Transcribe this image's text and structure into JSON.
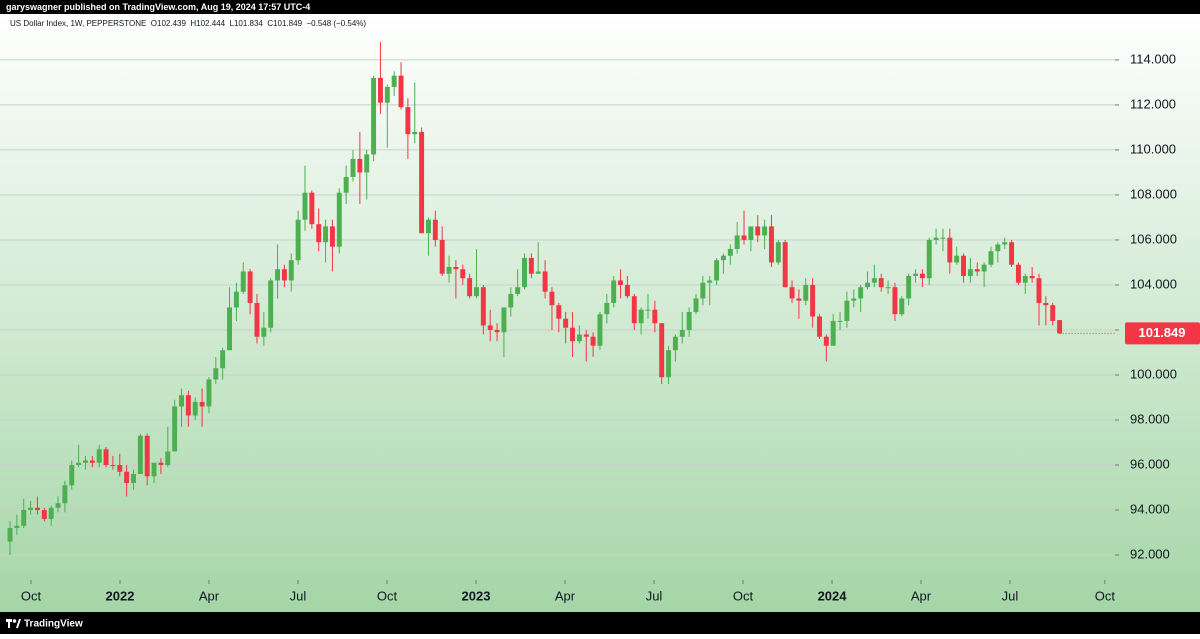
{
  "chart_data": {
    "type": "candlestick",
    "title": "garyswagner published on TradingView.com, Aug 19, 2024 17:57 UTC-4",
    "subtitle": "US Dollar Index, 1W, PEPPERSTONE  O102.439  H102.444  L101.834  C101.849  −0.548 (−0.54%)",
    "brand": "TradingView",
    "last_price_label": "101.849",
    "up_color": "#4caf50",
    "down_color": "#f23645",
    "grid": true,
    "ylim": [
      90.89,
      116.04
    ],
    "yticks": [
      {
        "value": 92,
        "label": "92.000"
      },
      {
        "value": 94,
        "label": "94.000"
      },
      {
        "value": 96,
        "label": "96.000"
      },
      {
        "value": 98,
        "label": "98.000"
      },
      {
        "value": 100,
        "label": "100.000"
      },
      {
        "value": 102,
        "label": "102.000"
      },
      {
        "value": 104,
        "label": "104.000"
      },
      {
        "value": 106,
        "label": "106.000"
      },
      {
        "value": 108,
        "label": "108.000"
      },
      {
        "value": 110,
        "label": "110.000"
      },
      {
        "value": 112,
        "label": "112.000"
      },
      {
        "value": 114,
        "label": "114.000"
      }
    ],
    "xlim": [
      -1.46,
      161.08
    ],
    "xticks": [
      {
        "value": 3.06,
        "label": "Oct"
      },
      {
        "value": 16.03,
        "label": "2022"
      },
      {
        "value": 29.0,
        "label": "Apr"
      },
      {
        "value": 41.98,
        "label": "Jul"
      },
      {
        "value": 54.96,
        "label": "Oct"
      },
      {
        "value": 67.93,
        "label": "2023"
      },
      {
        "value": 80.9,
        "label": "Apr"
      },
      {
        "value": 93.88,
        "label": "Jul"
      },
      {
        "value": 106.85,
        "label": "Oct"
      },
      {
        "value": 119.83,
        "label": "2024"
      },
      {
        "value": 132.8,
        "label": "Apr"
      },
      {
        "value": 145.77,
        "label": "Jul"
      },
      {
        "value": 159.6,
        "label": "Oct"
      }
    ],
    "open": [
      92.6,
      93.2,
      93.3,
      94.0,
      94.1,
      94.0,
      93.6,
      94.1,
      94.3,
      95.1,
      96.0,
      96.1,
      96.2,
      96.1,
      96.7,
      96.0,
      96.0,
      95.7,
      95.2,
      95.6,
      97.3,
      95.5,
      96.1,
      96.0,
      96.6,
      98.6,
      99.1,
      98.2,
      98.8,
      98.6,
      99.8,
      100.3,
      101.1,
      103.0,
      103.7,
      104.6,
      103.2,
      101.7,
      102.1,
      104.2,
      104.7,
      104.2,
      105.1,
      106.9,
      108.1,
      106.7,
      105.9,
      106.6,
      105.7,
      108.1,
      108.8,
      109.6,
      109.0,
      109.8,
      113.2,
      112.1,
      112.8,
      113.3,
      111.9,
      110.7,
      110.8,
      106.3,
      106.9,
      106.0,
      104.5,
      104.8,
      104.7,
      104.3,
      103.5,
      103.9,
      102.2,
      102.0,
      101.9,
      103.0,
      103.6,
      103.9,
      105.2,
      104.5,
      104.6,
      103.7,
      103.1,
      102.5,
      102.1,
      101.5,
      101.8,
      101.7,
      101.3,
      102.7,
      103.2,
      104.2,
      104.0,
      103.5,
      102.3,
      102.9,
      102.9,
      102.3,
      99.9,
      101.1,
      101.7,
      102.0,
      102.8,
      103.4,
      104.1,
      104.2,
      105.1,
      105.3,
      105.6,
      106.2,
      106.0,
      106.6,
      106.2,
      106.6,
      105.0,
      105.9,
      103.9,
      103.4,
      103.3,
      104.0,
      102.6,
      101.7,
      101.3,
      102.4,
      102.4,
      103.3,
      103.4,
      103.9,
      104.1,
      104.3,
      103.9,
      103.9,
      102.7,
      103.4,
      104.4,
      104.5,
      104.3,
      106.0,
      106.1,
      106.1,
      105.0,
      105.3,
      104.4,
      104.7,
      104.6,
      104.9,
      105.5,
      105.8,
      105.9,
      104.9,
      104.1,
      104.4,
      104.3,
      103.2,
      103.1,
      102.439
    ],
    "high": [
      93.5,
      93.8,
      94.5,
      94.4,
      94.6,
      94.1,
      94.2,
      94.6,
      95.3,
      96.2,
      96.9,
      96.4,
      96.4,
      96.9,
      96.8,
      96.4,
      96.5,
      96.0,
      95.8,
      97.4,
      97.4,
      96.1,
      96.3,
      97.7,
      98.9,
      99.4,
      99.3,
      99.0,
      99.4,
      99.9,
      100.8,
      101.2,
      103.9,
      104.1,
      105.0,
      104.7,
      103.6,
      102.8,
      104.3,
      105.8,
      104.9,
      105.4,
      107.3,
      109.3,
      108.2,
      107.4,
      106.9,
      106.9,
      108.3,
      109.3,
      110.0,
      110.8,
      110.0,
      113.3,
      114.8,
      112.9,
      113.5,
      113.9,
      112.3,
      113.0,
      111.0,
      107.0,
      107.3,
      106.6,
      105.3,
      105.1,
      104.9,
      104.5,
      105.6,
      104.0,
      102.9,
      102.3,
      103.0,
      103.9,
      104.7,
      105.4,
      105.4,
      105.9,
      105.1,
      103.9,
      103.2,
      102.8,
      102.8,
      102.2,
      102.0,
      101.9,
      102.8,
      103.6,
      104.4,
      104.7,
      104.4,
      103.6,
      103.0,
      103.6,
      103.3,
      102.3,
      101.3,
      101.8,
      102.8,
      103.0,
      103.6,
      104.4,
      104.4,
      105.2,
      105.4,
      105.8,
      106.8,
      107.3,
      106.6,
      107.1,
      106.9,
      107.1,
      106.0,
      106.0,
      104.2,
      103.8,
      104.3,
      104.3,
      102.7,
      101.8,
      102.7,
      102.8,
      103.7,
      103.8,
      104.0,
      104.6,
      104.9,
      104.5,
      104.2,
      104.1,
      103.5,
      104.5,
      104.7,
      104.7,
      106.1,
      106.5,
      106.5,
      106.5,
      105.7,
      105.4,
      105.2,
      105.0,
      105.0,
      105.7,
      105.9,
      106.1,
      106.0,
      105.0,
      104.5,
      104.8,
      104.5,
      103.5,
      103.2,
      102.444
    ],
    "low": [
      92.0,
      92.9,
      93.2,
      93.8,
      93.8,
      93.5,
      93.3,
      93.9,
      93.9,
      94.9,
      95.9,
      95.8,
      95.9,
      95.9,
      95.9,
      95.8,
      95.5,
      94.6,
      94.9,
      95.6,
      95.1,
      95.2,
      95.6,
      95.9,
      96.6,
      97.7,
      97.7,
      98.0,
      97.7,
      98.3,
      99.6,
      99.8,
      101.1,
      102.4,
      103.6,
      102.7,
      101.4,
      101.3,
      101.9,
      103.4,
      103.9,
      103.7,
      104.9,
      106.4,
      106.5,
      105.5,
      105.0,
      104.6,
      105.4,
      107.6,
      108.6,
      107.6,
      107.8,
      109.5,
      111.6,
      110.1,
      112.4,
      111.8,
      109.6,
      110.3,
      106.3,
      105.3,
      105.7,
      104.4,
      104.1,
      103.4,
      104.0,
      103.4,
      103.4,
      101.8,
      101.5,
      101.5,
      100.8,
      102.6,
      103.5,
      103.8,
      104.3,
      104.5,
      103.4,
      102.0,
      101.9,
      101.4,
      100.8,
      101.4,
      100.6,
      100.8,
      101.1,
      102.3,
      103.0,
      103.4,
      103.4,
      102.0,
      101.8,
      102.5,
      101.9,
      99.6,
      99.6,
      100.6,
      101.4,
      101.7,
      102.7,
      103.1,
      103.1,
      104.0,
      104.5,
      104.9,
      105.4,
      105.8,
      105.5,
      105.9,
      105.6,
      104.8,
      104.9,
      103.9,
      103.2,
      102.5,
      103.1,
      102.1,
      101.6,
      100.6,
      101.3,
      102.0,
      102.1,
      103.0,
      102.8,
      103.8,
      103.9,
      103.7,
      103.6,
      102.4,
      102.6,
      103.1,
      104.1,
      103.9,
      104.0,
      105.8,
      105.5,
      104.5,
      104.9,
      104.1,
      104.1,
      104.4,
      103.9,
      104.8,
      105.0,
      105.6,
      104.8,
      104.0,
      103.6,
      104.1,
      102.2,
      102.2,
      102.2,
      101.834
    ],
    "close": [
      93.2,
      93.3,
      94.0,
      94.1,
      94.0,
      93.6,
      94.1,
      94.3,
      95.1,
      96.0,
      96.1,
      96.2,
      96.1,
      96.7,
      96.0,
      95.97,
      95.7,
      95.2,
      95.6,
      97.3,
      95.5,
      96.1,
      96.0,
      96.6,
      98.6,
      99.1,
      98.2,
      98.8,
      98.6,
      99.8,
      100.3,
      101.1,
      103.0,
      103.7,
      104.6,
      103.2,
      101.7,
      102.1,
      104.2,
      104.7,
      104.2,
      105.1,
      106.9,
      108.1,
      106.7,
      105.9,
      106.6,
      105.7,
      108.1,
      108.8,
      109.6,
      109.0,
      109.8,
      113.2,
      112.1,
      112.8,
      113.3,
      111.9,
      110.7,
      110.8,
      106.3,
      106.9,
      106.0,
      104.5,
      104.8,
      104.7,
      104.3,
      103.5,
      103.9,
      102.2,
      102.0,
      101.9,
      103.0,
      103.6,
      103.9,
      105.2,
      104.5,
      104.6,
      103.7,
      103.1,
      102.5,
      102.1,
      101.5,
      101.8,
      101.7,
      101.3,
      102.7,
      103.2,
      104.2,
      104.0,
      103.5,
      102.3,
      102.9,
      102.9,
      102.3,
      99.9,
      101.1,
      101.7,
      102.0,
      102.8,
      103.4,
      104.1,
      104.2,
      105.1,
      105.3,
      105.6,
      106.2,
      106.0,
      106.6,
      106.2,
      106.6,
      105.0,
      105.9,
      103.9,
      103.4,
      103.3,
      104.0,
      102.6,
      101.7,
      101.3,
      102.4,
      102.4,
      103.3,
      103.4,
      103.9,
      104.1,
      104.3,
      103.9,
      103.9,
      102.7,
      103.4,
      104.4,
      104.5,
      104.3,
      106.0,
      106.1,
      106.1,
      105.0,
      105.3,
      104.4,
      104.7,
      104.6,
      104.9,
      105.5,
      105.8,
      105.9,
      104.9,
      104.1,
      104.4,
      104.3,
      103.2,
      103.1,
      102.4,
      101.849
    ]
  }
}
